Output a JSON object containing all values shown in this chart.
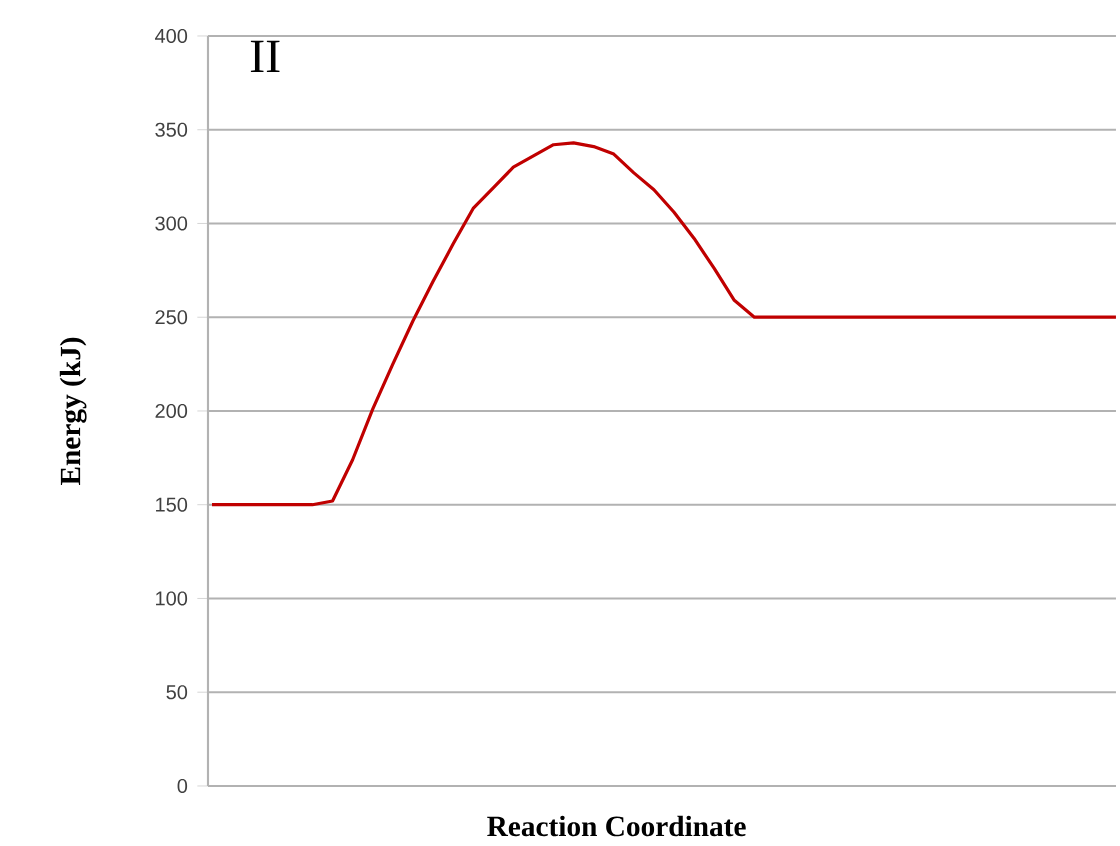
{
  "chart_data": {
    "type": "line",
    "title": "II",
    "xlabel": "Reaction Coordinate",
    "ylabel": "Energy  (kJ)",
    "categories": [
      null,
      null,
      null,
      null,
      null,
      null,
      null,
      null,
      null,
      null,
      null,
      null,
      null,
      null,
      null,
      null,
      null,
      null,
      null,
      null,
      null,
      null,
      null,
      null,
      null,
      null,
      null,
      null,
      null,
      null,
      null,
      null,
      null,
      null,
      null,
      null,
      null,
      null,
      null,
      null,
      null,
      null,
      null,
      null,
      null,
      null
    ],
    "series": [
      {
        "color": "#c00000",
        "values": [
          150,
          150,
          150,
          150,
          150,
          150,
          152,
          174,
          201,
          225,
          248,
          269,
          289,
          308,
          319,
          330,
          336,
          342,
          343,
          341,
          337,
          327,
          318,
          306,
          292,
          276,
          259,
          250,
          250,
          250,
          250,
          250,
          250,
          250,
          250,
          250,
          250,
          250,
          250,
          250,
          250,
          250,
          250,
          250,
          250,
          250
        ]
      }
    ],
    "ylim": [
      0,
      400
    ],
    "yticks": [
      0,
      50,
      100,
      150,
      200,
      250,
      300,
      350,
      400
    ],
    "grid": "y",
    "tick_labels": "y",
    "marker": "none",
    "line_style": "solid"
  }
}
